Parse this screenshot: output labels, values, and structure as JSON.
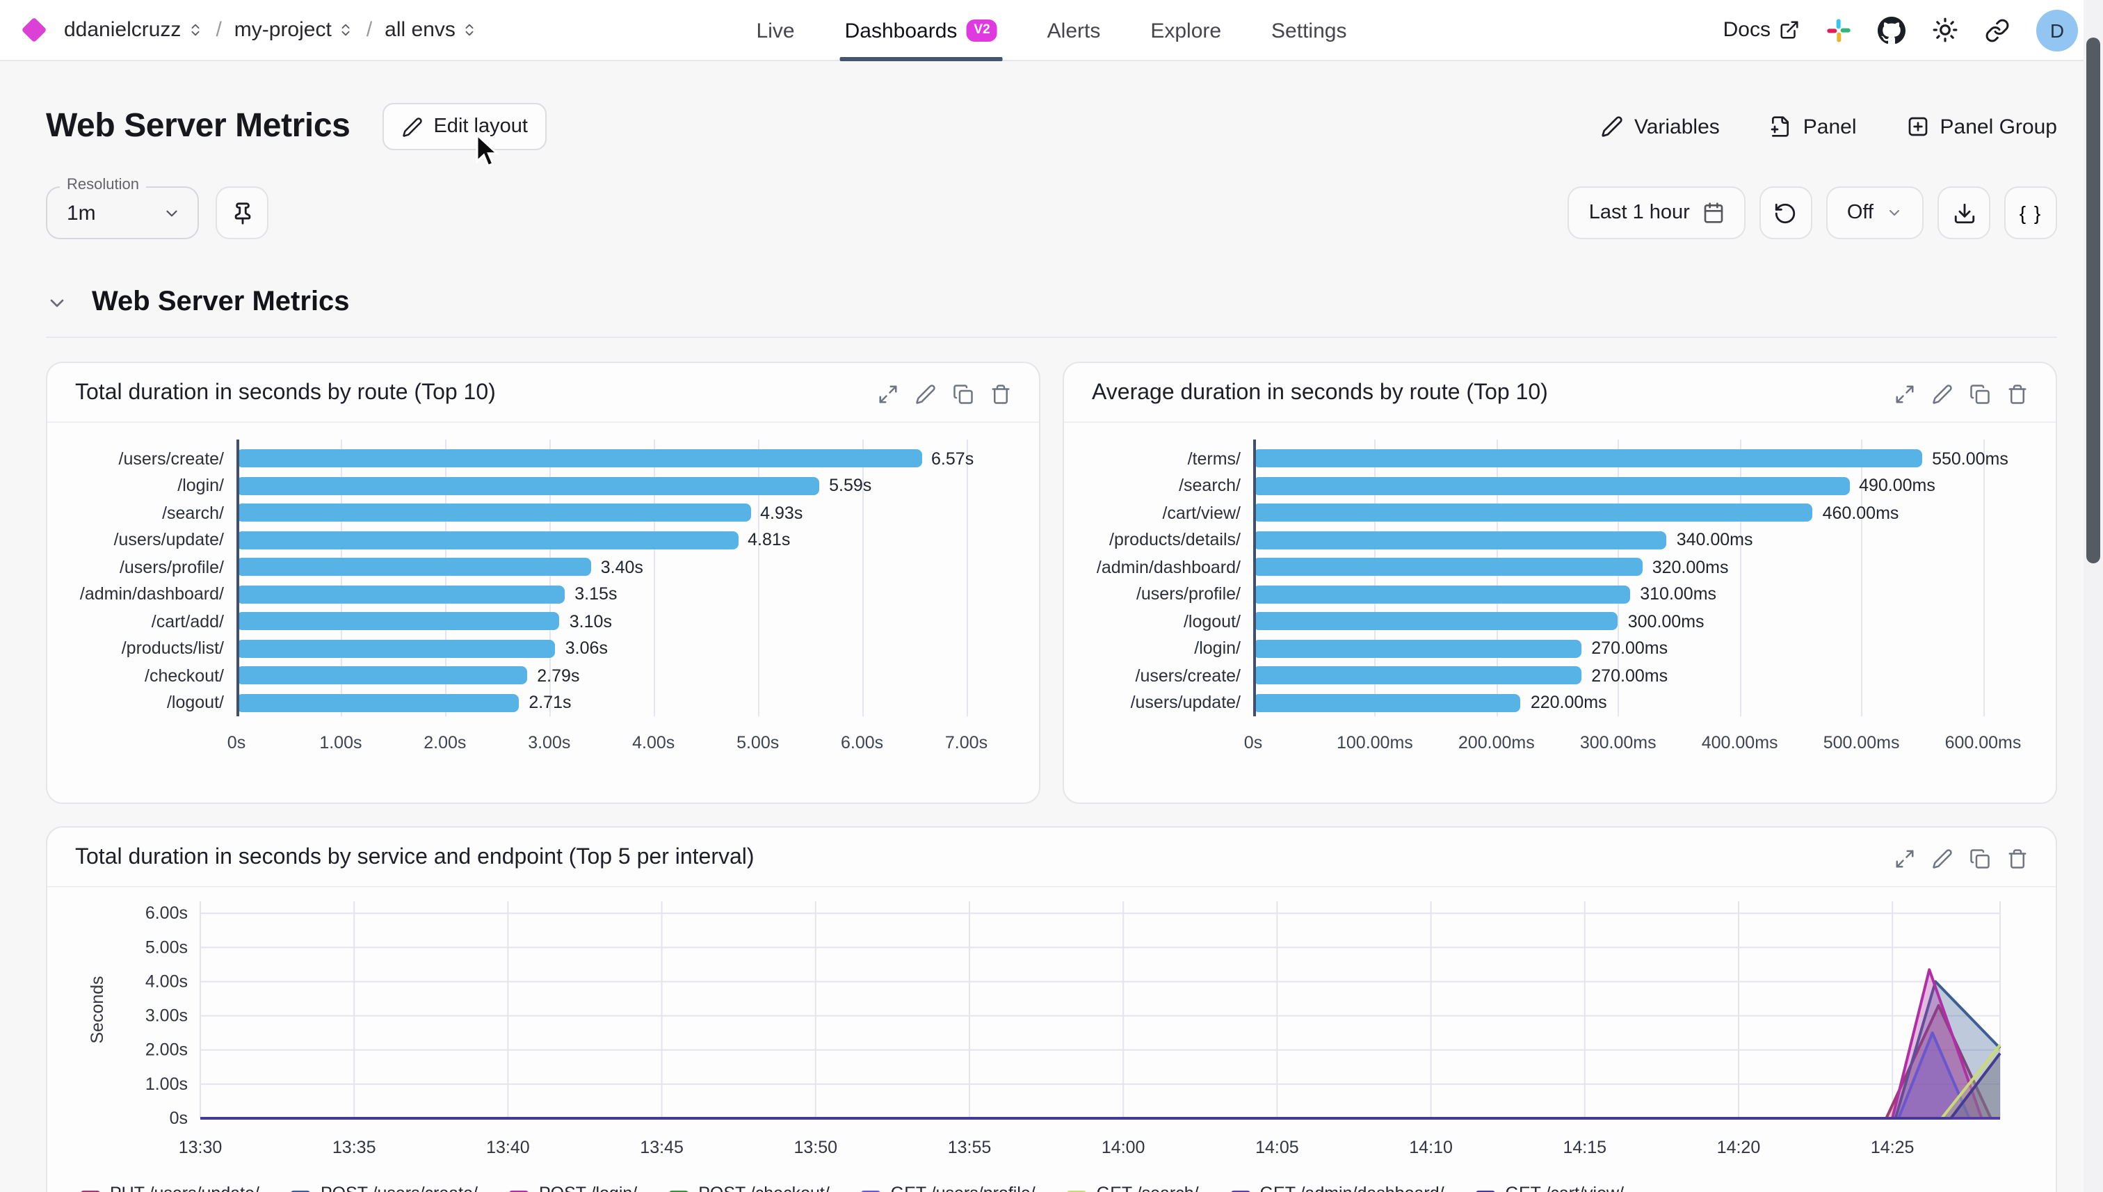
{
  "topbar": {
    "breadcrumb": [
      {
        "label": "ddanielcruzz"
      },
      {
        "label": "my-project"
      },
      {
        "label": "all envs"
      }
    ],
    "nav": [
      {
        "label": "Live"
      },
      {
        "label": "Dashboards",
        "badge": "V2"
      },
      {
        "label": "Alerts"
      },
      {
        "label": "Explore"
      },
      {
        "label": "Settings"
      }
    ],
    "docs_label": "Docs",
    "avatar_initial": "D"
  },
  "header": {
    "title": "Web Server Metrics",
    "edit_layout_label": "Edit layout",
    "variables_label": "Variables",
    "panel_label": "Panel",
    "panel_group_label": "Panel Group"
  },
  "toolbar": {
    "resolution_label": "Resolution",
    "resolution_value": "1m",
    "time_range_label": "Last 1 hour",
    "refresh_value": "Off",
    "braces_label": "{ }"
  },
  "section": {
    "title": "Web Server Metrics"
  },
  "colors": {
    "bar_blue": "#57b2e6",
    "accent_magenta": "#df39df",
    "active_tab_underline": "#46556e"
  },
  "chart_data": [
    {
      "type": "bar",
      "orientation": "horizontal",
      "title": "Total duration in seconds by route (Top 10)",
      "unit": "s",
      "axis_max": 7.35,
      "bar_color": "#57b2e6",
      "rows": [
        {
          "label": "/users/create/",
          "value": 6.57,
          "value_label": "6.57s"
        },
        {
          "label": "/login/",
          "value": 5.59,
          "value_label": "5.59s"
        },
        {
          "label": "/search/",
          "value": 4.93,
          "value_label": "4.93s"
        },
        {
          "label": "/users/update/",
          "value": 4.81,
          "value_label": "4.81s"
        },
        {
          "label": "/users/profile/",
          "value": 3.4,
          "value_label": "3.40s"
        },
        {
          "label": "/admin/dashboard/",
          "value": 3.15,
          "value_label": "3.15s"
        },
        {
          "label": "/cart/add/",
          "value": 3.1,
          "value_label": "3.10s"
        },
        {
          "label": "/products/list/",
          "value": 3.06,
          "value_label": "3.06s"
        },
        {
          "label": "/checkout/",
          "value": 2.79,
          "value_label": "2.79s"
        },
        {
          "label": "/logout/",
          "value": 2.71,
          "value_label": "2.71s"
        }
      ],
      "ticks": [
        {
          "value": 0,
          "label": "0s"
        },
        {
          "value": 1,
          "label": "1.00s"
        },
        {
          "value": 2,
          "label": "2.00s"
        },
        {
          "value": 3,
          "label": "3.00s"
        },
        {
          "value": 4,
          "label": "4.00s"
        },
        {
          "value": 5,
          "label": "5.00s"
        },
        {
          "value": 6,
          "label": "6.00s"
        },
        {
          "value": 7,
          "label": "7.00s"
        }
      ]
    },
    {
      "type": "bar",
      "orientation": "horizontal",
      "title": "Average duration in seconds by route (Top 10)",
      "unit": "ms",
      "axis_max": 630,
      "bar_color": "#57b2e6",
      "rows": [
        {
          "label": "/terms/",
          "value": 550,
          "value_label": "550.00ms"
        },
        {
          "label": "/search/",
          "value": 490,
          "value_label": "490.00ms"
        },
        {
          "label": "/cart/view/",
          "value": 460,
          "value_label": "460.00ms"
        },
        {
          "label": "/products/details/",
          "value": 340,
          "value_label": "340.00ms"
        },
        {
          "label": "/admin/dashboard/",
          "value": 320,
          "value_label": "320.00ms"
        },
        {
          "label": "/users/profile/",
          "value": 310,
          "value_label": "310.00ms"
        },
        {
          "label": "/logout/",
          "value": 300,
          "value_label": "300.00ms"
        },
        {
          "label": "/login/",
          "value": 270,
          "value_label": "270.00ms"
        },
        {
          "label": "/users/create/",
          "value": 270,
          "value_label": "270.00ms"
        },
        {
          "label": "/users/update/",
          "value": 220,
          "value_label": "220.00ms"
        }
      ],
      "ticks": [
        {
          "value": 0,
          "label": "0s"
        },
        {
          "value": 100,
          "label": "100.00ms"
        },
        {
          "value": 200,
          "label": "200.00ms"
        },
        {
          "value": 300,
          "label": "300.00ms"
        },
        {
          "value": 400,
          "label": "400.00ms"
        },
        {
          "value": 500,
          "label": "500.00ms"
        },
        {
          "value": 600,
          "label": "600.00ms"
        }
      ]
    },
    {
      "type": "area",
      "title": "Total duration in seconds by service and endpoint (Top 5 per interval)",
      "ylabel": "Seconds",
      "ymax": 6.35,
      "yticks": [
        {
          "value": 0,
          "label": "0s"
        },
        {
          "value": 1,
          "label": "1.00s"
        },
        {
          "value": 2,
          "label": "2.00s"
        },
        {
          "value": 3,
          "label": "3.00s"
        },
        {
          "value": 4,
          "label": "4.00s"
        },
        {
          "value": 5,
          "label": "5.00s"
        },
        {
          "value": 6,
          "label": "6.00s"
        }
      ],
      "x_domain_minutes": [
        0,
        58.5
      ],
      "xticks": [
        {
          "t": 0,
          "label": "13:30"
        },
        {
          "t": 5,
          "label": "13:35"
        },
        {
          "t": 10,
          "label": "13:40"
        },
        {
          "t": 15,
          "label": "13:45"
        },
        {
          "t": 20,
          "label": "13:50"
        },
        {
          "t": 25,
          "label": "13:55"
        },
        {
          "t": 30,
          "label": "14:00"
        },
        {
          "t": 35,
          "label": "14:05"
        },
        {
          "t": 40,
          "label": "14:10"
        },
        {
          "t": 45,
          "label": "14:15"
        },
        {
          "t": 50,
          "label": "14:20"
        },
        {
          "t": 55,
          "label": "14:25"
        }
      ],
      "series": [
        {
          "name": "PUT /users/update/",
          "color": "#9e3a6d",
          "points": [
            [
              0,
              0
            ],
            [
              54.8,
              0
            ],
            [
              56.5,
              3.3
            ],
            [
              58.2,
              0
            ],
            [
              58.5,
              0
            ]
          ]
        },
        {
          "name": "POST /users/create/",
          "color": "#3c5e94",
          "points": [
            [
              0,
              0
            ],
            [
              55.1,
              0
            ],
            [
              56.4,
              4.0
            ],
            [
              58.5,
              2.05
            ]
          ]
        },
        {
          "name": "POST /login/",
          "color": "#b02fa5",
          "points": [
            [
              0,
              0
            ],
            [
              55.0,
              0
            ],
            [
              56.2,
              4.35
            ],
            [
              57.9,
              0
            ],
            [
              58.5,
              0
            ]
          ]
        },
        {
          "name": "POST /checkout/",
          "color": "#3e8e41",
          "points": [
            [
              0,
              0
            ],
            [
              58.5,
              0
            ]
          ]
        },
        {
          "name": "GET /users/profile/",
          "color": "#6957ce",
          "points": [
            [
              0,
              0
            ],
            [
              55.2,
              0
            ],
            [
              56.3,
              2.5
            ],
            [
              57.5,
              0
            ],
            [
              58.5,
              0
            ]
          ]
        },
        {
          "name": "GET /search/",
          "color": "#c9da7a",
          "points": [
            [
              0,
              0
            ],
            [
              56.6,
              0
            ],
            [
              58.5,
              2.15
            ]
          ]
        },
        {
          "name": "GET /admin/dashboard/",
          "color": "#5b3fa8",
          "points": [
            [
              0,
              0
            ],
            [
              58.5,
              0
            ]
          ]
        },
        {
          "name": "GET /cart/view/",
          "color": "#453a96",
          "points": [
            [
              0,
              0
            ],
            [
              56.9,
              0
            ],
            [
              58.5,
              1.9
            ]
          ]
        }
      ]
    }
  ]
}
